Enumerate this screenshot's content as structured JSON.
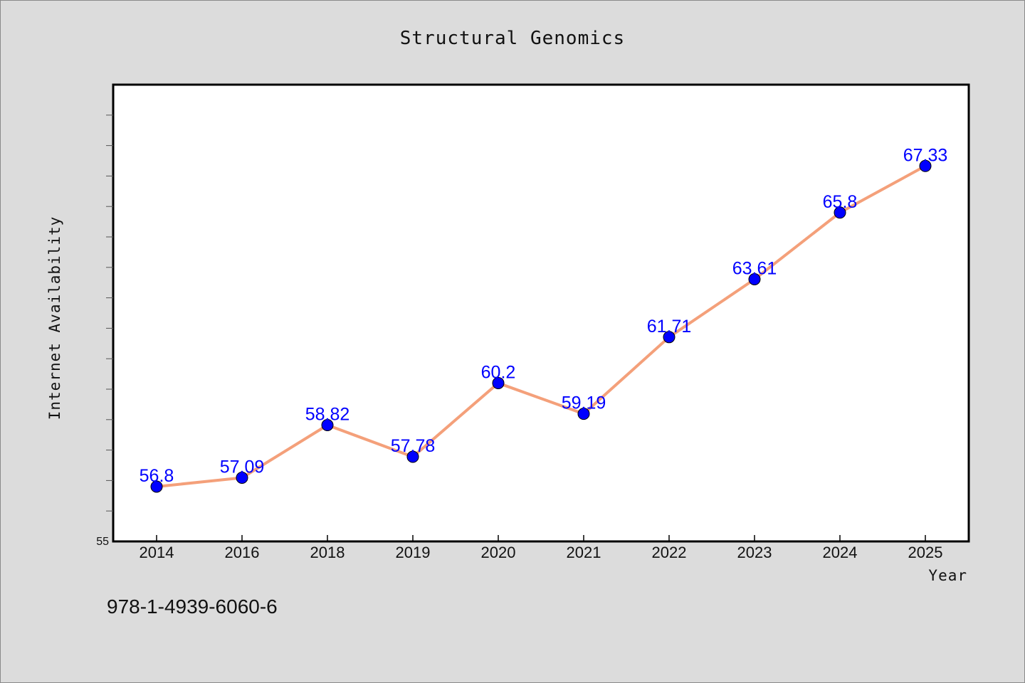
{
  "chart_data": {
    "type": "line",
    "title": "Structural Genomics",
    "xlabel": "Year",
    "ylabel": "Internet Availability",
    "categories": [
      "2014",
      "2016",
      "2018",
      "2019",
      "2020",
      "2021",
      "2022",
      "2023",
      "2024",
      "2025"
    ],
    "series": [
      {
        "name": "",
        "values": [
          56.8,
          57.09,
          58.82,
          57.78,
          60.2,
          59.19,
          61.71,
          63.61,
          65.8,
          67.33
        ],
        "labels": [
          "56.8",
          "57.09",
          "58.82",
          "57.78",
          "60.2",
          "59.19",
          "61.71",
          "63.61",
          "65.8",
          "67.33"
        ]
      }
    ],
    "ylim": [
      55,
      70
    ],
    "ytick_label": "55",
    "grid": false,
    "legend": "none",
    "colors": {
      "line": "#f4a07a",
      "marker": "#0000ff",
      "label": "#0000ff",
      "background": "#dcdcdc",
      "plot_background": "#ffffff"
    }
  },
  "footer": {
    "isbn": "978-1-4939-6060-6"
  }
}
